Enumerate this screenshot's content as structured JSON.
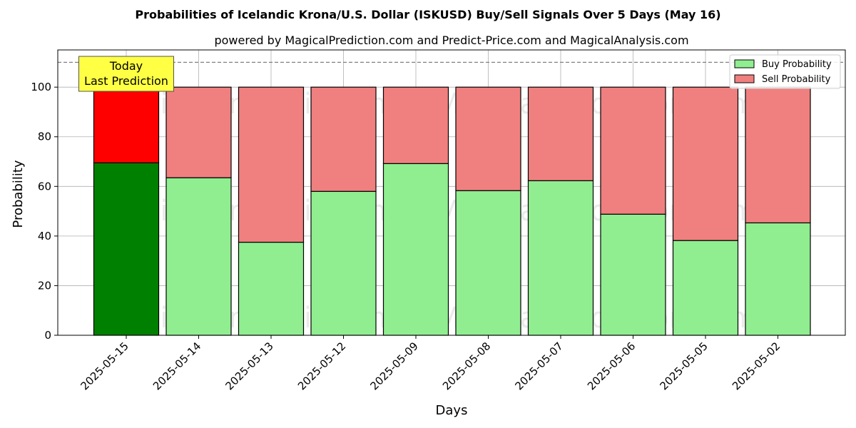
{
  "chart_data": {
    "type": "bar",
    "title": "Probabilities of Icelandic Krona/U.S. Dollar (ISKUSD) Buy/Sell Signals Over 5 Days (May 16)",
    "subtitle": "powered by MagicalPrediction.com and Predict-Price.com and MagicalAnalysis.com",
    "xlabel": "Days",
    "ylabel": "Probability",
    "ylim": [
      0,
      115
    ],
    "yticks": [
      0,
      20,
      40,
      60,
      80,
      100
    ],
    "categories": [
      "2025-05-15",
      "2025-05-14",
      "2025-05-13",
      "2025-05-12",
      "2025-05-09",
      "2025-05-08",
      "2025-05-07",
      "2025-05-06",
      "2025-05-05",
      "2025-05-02"
    ],
    "stacked": true,
    "series": [
      {
        "name": "Buy Probability",
        "color": "#90ee90",
        "highlight_color": "#008000",
        "values": [
          69.5,
          63.5,
          37.5,
          58,
          69.2,
          58.3,
          62.3,
          48.8,
          38.2,
          45.3
        ]
      },
      {
        "name": "Sell Probability",
        "color": "#f08080",
        "highlight_color": "#ff0000",
        "values": [
          30.5,
          36.5,
          62.5,
          42,
          30.8,
          41.7,
          37.7,
          51.2,
          61.8,
          54.7
        ]
      }
    ],
    "reference_line": {
      "y": 110,
      "style": "dashed"
    },
    "annotation": {
      "lines": [
        "Today",
        "Last Prediction"
      ],
      "category": "2025-05-15"
    },
    "legend_position": "top-right",
    "grid": true,
    "watermarks": [
      "MagicalAnalysis.com",
      "MagicalPrediction.com"
    ]
  }
}
